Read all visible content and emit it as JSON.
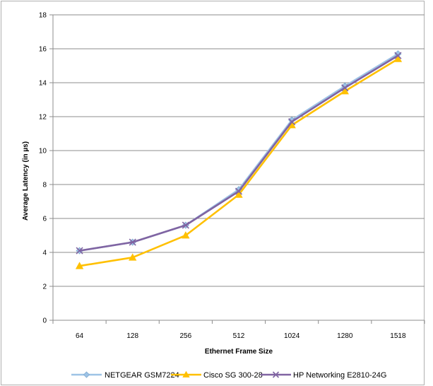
{
  "chart_data": {
    "type": "line",
    "title": "",
    "xlabel": "Ethernet Frame Size",
    "ylabel": "Average Latency (in µs)",
    "categories": [
      "64",
      "128",
      "256",
      "512",
      "1024",
      "1280",
      "1518"
    ],
    "ylim": [
      0,
      18
    ],
    "yticks": [
      0,
      2,
      4,
      6,
      8,
      10,
      12,
      14,
      16,
      18
    ],
    "grid": true,
    "legend_position": "bottom",
    "series": [
      {
        "name": "NETGEAR GSM7224",
        "values": [
          4.1,
          4.6,
          5.6,
          7.7,
          11.8,
          13.8,
          15.7
        ],
        "color": "#9DC3E6",
        "marker": "diamond"
      },
      {
        "name": "Cisco SG 300-28",
        "values": [
          3.2,
          3.7,
          5.0,
          7.4,
          11.5,
          13.5,
          15.4
        ],
        "color": "#FFC000",
        "marker": "triangle"
      },
      {
        "name": "HP Networking E2810-24G",
        "values": [
          4.1,
          4.6,
          5.6,
          7.6,
          11.7,
          13.7,
          15.6
        ],
        "color": "#8064A2",
        "marker": "x"
      }
    ]
  }
}
